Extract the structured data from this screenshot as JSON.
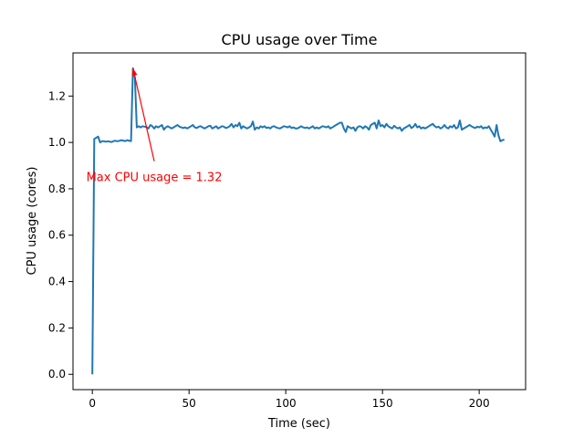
{
  "chart_data": {
    "type": "line",
    "title": "CPU usage over Time",
    "xlabel": "Time (sec)",
    "ylabel": "CPU usage (cores)",
    "xlim": [
      -10,
      224
    ],
    "ylim": [
      -0.066,
      1.386
    ],
    "x_ticks": [
      0,
      50,
      100,
      150,
      200
    ],
    "y_ticks": [
      0.0,
      0.2,
      0.4,
      0.6,
      0.8,
      1.0,
      1.2
    ],
    "x_tick_labels": [
      "0",
      "50",
      "100",
      "150",
      "200"
    ],
    "y_tick_labels": [
      "0.0",
      "0.2",
      "0.4",
      "0.6",
      "0.8",
      "1.0",
      "1.2"
    ],
    "grid": false,
    "legend": "none",
    "series": [
      {
        "color": "#1f77b4",
        "x": [
          0,
          1,
          2,
          3,
          4,
          5,
          6,
          7,
          8,
          9,
          10,
          11,
          12,
          13,
          14,
          15,
          16,
          17,
          18,
          19,
          20,
          21,
          22,
          23,
          24,
          25,
          26,
          27,
          28,
          29,
          30,
          31,
          32,
          33,
          34,
          35,
          36,
          37,
          38,
          39,
          40,
          41,
          42,
          43,
          44,
          45,
          46,
          47,
          48,
          49,
          50,
          51,
          52,
          53,
          54,
          55,
          56,
          57,
          58,
          59,
          60,
          61,
          62,
          63,
          64,
          65,
          66,
          67,
          68,
          69,
          70,
          71,
          72,
          73,
          74,
          75,
          76,
          77,
          78,
          79,
          80,
          81,
          82,
          83,
          84,
          85,
          86,
          87,
          88,
          89,
          90,
          91,
          92,
          93,
          94,
          95,
          96,
          97,
          98,
          99,
          100,
          101,
          102,
          103,
          104,
          105,
          106,
          107,
          108,
          109,
          110,
          111,
          112,
          113,
          114,
          115,
          116,
          117,
          118,
          119,
          120,
          121,
          122,
          123,
          124,
          125,
          126,
          127,
          128,
          129,
          130,
          131,
          132,
          133,
          134,
          135,
          136,
          137,
          138,
          139,
          140,
          141,
          142,
          143,
          144,
          145,
          146,
          147,
          148,
          149,
          150,
          151,
          152,
          153,
          154,
          155,
          156,
          157,
          158,
          159,
          160,
          161,
          162,
          163,
          164,
          165,
          166,
          167,
          168,
          169,
          170,
          171,
          172,
          173,
          174,
          175,
          176,
          177,
          178,
          179,
          180,
          181,
          182,
          183,
          184,
          185,
          186,
          187,
          188,
          189,
          190,
          191,
          192,
          193,
          194,
          195,
          196,
          197,
          198,
          199,
          200,
          201,
          202,
          203,
          204,
          205,
          206,
          207,
          208,
          209,
          210,
          211,
          212,
          213
        ],
        "y": [
          0.0,
          1.015,
          1.02,
          1.025,
          1.0,
          1.005,
          1.005,
          1.003,
          1.005,
          1.003,
          1.002,
          1.006,
          1.007,
          1.005,
          1.007,
          1.01,
          1.008,
          1.006,
          1.01,
          1.007,
          1.006,
          1.32,
          1.28,
          1.065,
          1.07,
          1.065,
          1.07,
          1.068,
          1.066,
          1.06,
          1.075,
          1.07,
          1.06,
          1.07,
          1.065,
          1.07,
          1.075,
          1.055,
          1.065,
          1.07,
          1.065,
          1.06,
          1.065,
          1.07,
          1.075,
          1.068,
          1.065,
          1.062,
          1.065,
          1.06,
          1.065,
          1.07,
          1.075,
          1.065,
          1.062,
          1.068,
          1.07,
          1.065,
          1.06,
          1.065,
          1.07,
          1.072,
          1.06,
          1.065,
          1.07,
          1.06,
          1.065,
          1.07,
          1.068,
          1.062,
          1.065,
          1.07,
          1.08,
          1.065,
          1.075,
          1.07,
          1.085,
          1.06,
          1.07,
          1.065,
          1.06,
          1.065,
          1.07,
          1.09,
          1.055,
          1.065,
          1.06,
          1.07,
          1.065,
          1.07,
          1.062,
          1.065,
          1.06,
          1.068,
          1.07,
          1.065,
          1.062,
          1.06,
          1.065,
          1.07,
          1.068,
          1.065,
          1.07,
          1.062,
          1.065,
          1.06,
          1.06,
          1.065,
          1.07,
          1.065,
          1.062,
          1.065,
          1.06,
          1.065,
          1.07,
          1.06,
          1.065,
          1.06,
          1.065,
          1.07,
          1.068,
          1.065,
          1.07,
          1.06,
          1.065,
          1.07,
          1.075,
          1.08,
          1.085,
          1.085,
          1.06,
          1.045,
          1.07,
          1.065,
          1.06,
          1.065,
          1.05,
          1.065,
          1.07,
          1.068,
          1.06,
          1.07,
          1.065,
          1.055,
          1.075,
          1.08,
          1.085,
          1.06,
          1.095,
          1.07,
          1.075,
          1.065,
          1.08,
          1.07,
          1.065,
          1.06,
          1.072,
          1.065,
          1.06,
          1.065,
          1.05,
          1.06,
          1.065,
          1.07,
          1.075,
          1.062,
          1.068,
          1.08,
          1.065,
          1.07,
          1.06,
          1.065,
          1.06,
          1.065,
          1.07,
          1.075,
          1.08,
          1.07,
          1.065,
          1.068,
          1.06,
          1.065,
          1.075,
          1.065,
          1.06,
          1.07,
          1.065,
          1.075,
          1.06,
          1.065,
          1.095,
          1.055,
          1.06,
          1.065,
          1.07,
          1.075,
          1.07,
          1.065,
          1.062,
          1.068,
          1.065,
          1.07,
          1.06,
          1.065,
          1.062,
          1.07,
          1.055,
          1.04,
          1.025,
          1.075,
          1.03,
          1.005,
          1.01,
          1.012
        ]
      }
    ],
    "annotation": {
      "text": "Max CPU usage = 1.32",
      "xy": [
        21,
        1.32
      ],
      "xytext": [
        32,
        0.88
      ],
      "color": "#ff0000"
    }
  }
}
